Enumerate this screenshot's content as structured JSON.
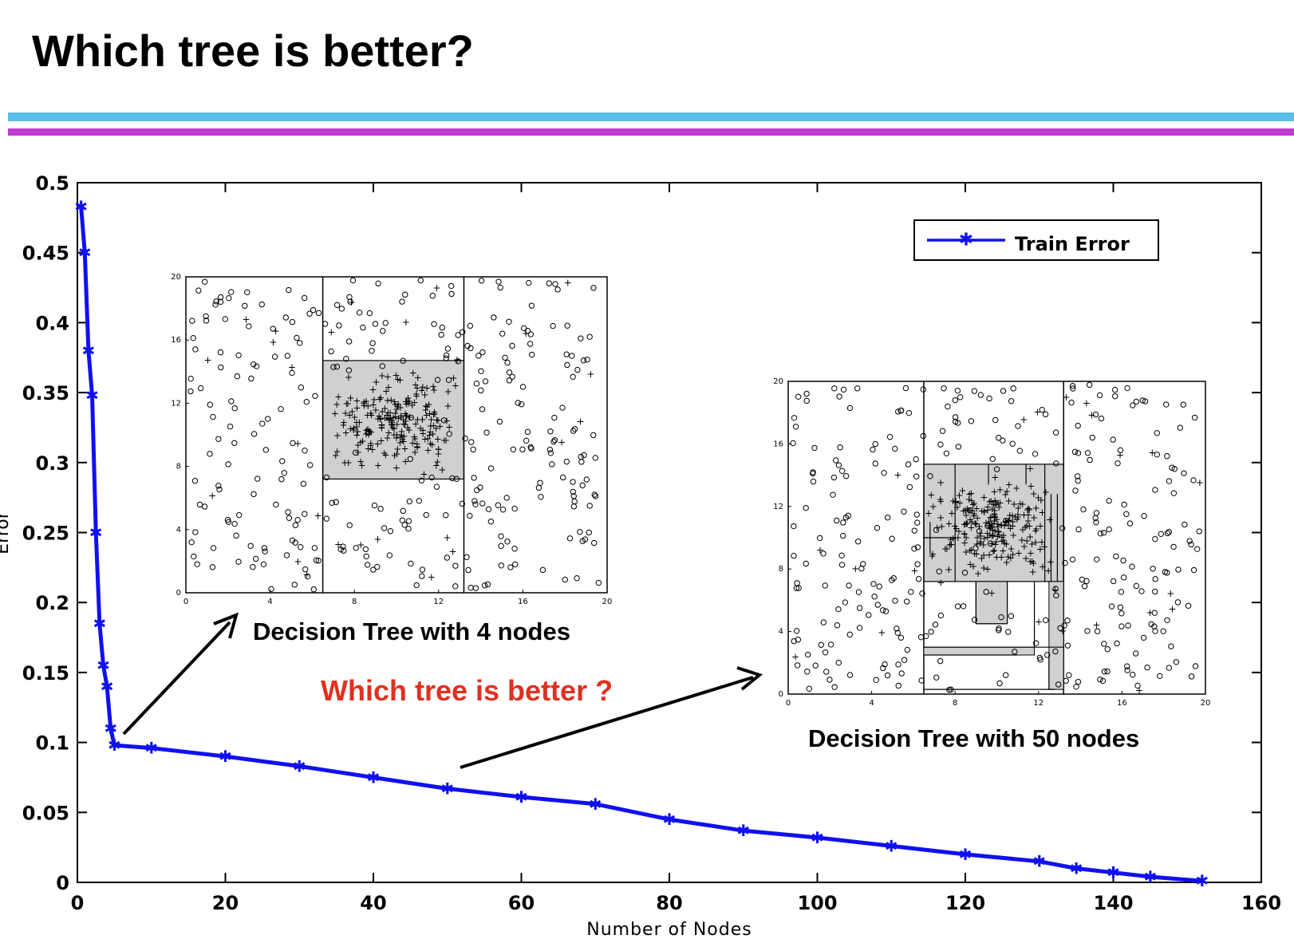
{
  "slide": {
    "title": "Which tree is better?",
    "bar_top_color": "#5bc0e8",
    "bar_bottom_color": "#c03ccf"
  },
  "chart_data": {
    "type": "line",
    "title": "",
    "xlabel": "Number of Nodes",
    "ylabel": "Error",
    "xlim": [
      0,
      160
    ],
    "ylim": [
      0,
      0.5
    ],
    "xticks": [
      "0",
      "20",
      "40",
      "60",
      "80",
      "100",
      "120",
      "140",
      "160"
    ],
    "yticks": [
      "0",
      "0.05",
      "0.1",
      "0.15",
      "0.2",
      "0.25",
      "0.3",
      "0.35",
      "0.4",
      "0.45",
      "0.5"
    ],
    "grid": false,
    "legend": {
      "position": "top-right",
      "entries": [
        "Train Error"
      ]
    },
    "series": [
      {
        "name": "Train Error",
        "color": "#1010f0",
        "x": [
          0.5,
          1,
          1.5,
          2,
          2.5,
          3,
          3.5,
          4,
          4.5,
          5,
          10,
          20,
          30,
          40,
          50,
          60,
          70,
          80,
          90,
          100,
          110,
          120,
          130,
          135,
          140,
          145,
          152
        ],
        "y": [
          0.483,
          0.45,
          0.38,
          0.348,
          0.25,
          0.185,
          0.155,
          0.14,
          0.11,
          0.098,
          0.096,
          0.09,
          0.083,
          0.075,
          0.067,
          0.061,
          0.056,
          0.045,
          0.037,
          0.032,
          0.026,
          0.02,
          0.015,
          0.01,
          0.007,
          0.004,
          0.001
        ]
      }
    ]
  },
  "annotations": {
    "question": "Which tree is better ?",
    "question_color": "#e03020",
    "caption_small": "Decision Tree with 4 nodes",
    "caption_large": "Decision Tree with 50 nodes"
  },
  "insets": {
    "small": {
      "nodes": 4,
      "xticks": [
        "0",
        "4",
        "8",
        "12",
        "16",
        "20"
      ],
      "yticks": [
        "0",
        "4",
        "8",
        "12",
        "16",
        "20"
      ],
      "splits_x": [
        6.5,
        13.2
      ],
      "shaded_box": {
        "x": [
          6.5,
          13.2
        ],
        "y": [
          7.2,
          14.7
        ]
      }
    },
    "large": {
      "nodes": 50,
      "xticks": [
        "0",
        "4",
        "8",
        "12",
        "16",
        "20"
      ],
      "yticks": [
        "0",
        "4",
        "8",
        "12",
        "16",
        "20"
      ],
      "splits_x": [
        6.5,
        13.2
      ],
      "shaded_box": {
        "x": [
          6.5,
          13.2
        ],
        "y": [
          7.2,
          14.7
        ]
      }
    }
  }
}
